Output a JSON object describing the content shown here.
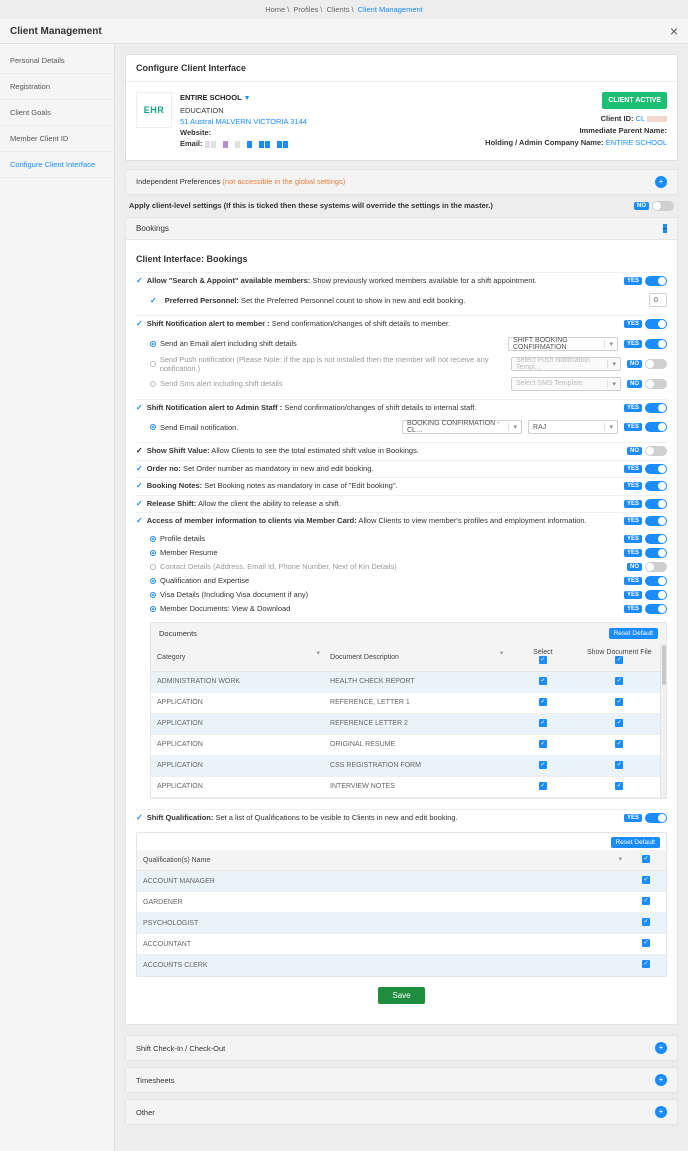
{
  "breadcrumb": {
    "home": "Home",
    "profiles": "Profiles",
    "clients": "Clients",
    "current": "Client Management"
  },
  "page_title": "Client Management",
  "sidebar": {
    "items": [
      {
        "label": "Personal Details"
      },
      {
        "label": "Registration"
      },
      {
        "label": "Client Goals"
      },
      {
        "label": "Member Client ID"
      },
      {
        "label": "Configure Client Interface"
      }
    ],
    "active_index": 4
  },
  "card": {
    "title": "Configure Client Interface",
    "logo_text": "EHR",
    "client_name": "ENTIRE SCHOOL",
    "category": "EDUCATION",
    "address": "51 Austral MALVERN VICTORIA 3144",
    "website_label": "Website:",
    "email_label": "Email:",
    "status_badge": "CLIENT ACTIVE",
    "client_id_label": "Client ID:",
    "client_id_value": "CL",
    "parent_label": "Immediate Parent Name:",
    "holding_label": "Holding / Admin Company Name:",
    "holding_value": "ENTIRE SCHOOL",
    "barcode_colors": [
      "#e0e0e0",
      "#e0e0e0",
      "#ffffff",
      "#b68fd1",
      "#ffffff",
      "#e0e0e0",
      "#ffffff",
      "#1a8cff",
      "#ffffff",
      "#1a8cff",
      "#1a8cff",
      "#ffffff",
      "#1a8cff",
      "#1a8cff"
    ]
  },
  "bars": {
    "indep_label": "Independent Preferences",
    "indep_note": "(not accessible in the global settings)",
    "apply_hint": "Apply client-level settings (If this is ticked then these systems will override the settings in the master.)",
    "bookings": "Bookings",
    "shift_check": "Shift Check-In / Check-Out",
    "timesheets": "Timesheets",
    "other": "Other"
  },
  "section_title": "Client Interface: Bookings",
  "toggle_labels": {
    "yes": "YES",
    "no": "NO"
  },
  "settings": {
    "search_appoint": {
      "b": "Allow \"Search & Appoint\" available members:",
      "t": " Show previously worked members available for a shift appointment."
    },
    "preferred": {
      "b": "Preferred Personnel:",
      "t": " Set the Preferred Personnel count to show in new and edit booking.",
      "val": "0"
    },
    "notif_member": {
      "b": "Shift Notification alert to member :",
      "t": " Send confirmation/changes of shift details to member."
    },
    "notif_member_opts": {
      "email": "Send an Email alert including shift details",
      "push": "Send Push notification (Please Note: if the app is not installed then the member will not receive any notification.)",
      "sms": "Send Sms alert including shift details",
      "email_tpl": "SHIFT BOOKING CONFIRMATION",
      "push_tpl": "Select Push Notification Templ…",
      "sms_tpl": "Select SMS Template"
    },
    "notif_admin": {
      "b": "Shift Notification alert to Admin Staff :",
      "t": " Send confirmation/changes of shift details to internal staff."
    },
    "notif_admin_opts": {
      "email": "Send Email notification.",
      "tpl": "BOOKING CONFIRMATION - CL…",
      "who": "RAJ"
    },
    "show_value": {
      "b": "Show Shift Value:",
      "t": " Allow Clients to see the total estimated shift value in Bookings."
    },
    "order_no": {
      "b": "Order no:",
      "t": " Set Order number as mandatory in new and edit booking."
    },
    "booking_notes": {
      "b": "Booking Notes:",
      "t": " Set Booking notes as mandatory in case of \"Edit booking\"."
    },
    "release": {
      "b": "Release Shift:",
      "t": " Allow the client the ability to release a shift."
    },
    "member_card": {
      "b": "Access of member information to clients via Member Card:",
      "t": " Allow Clients to view member's profiles and employment information."
    },
    "member_card_opts": {
      "profile": "Profile details",
      "resume": "Member Resume",
      "contact": "Contact Details (Address, Email Id, Phone Number, Next of Kin Details)",
      "qual": "Qualification and Expertise",
      "visa": "Visa Details (Including Visa document if any)",
      "docs": "Member Documents: View & Download"
    },
    "shift_qual": {
      "b": "Shift Qualification:",
      "t": " Set a list of Qualifications to be visible to Clients in new and edit booking."
    }
  },
  "documents": {
    "title": "Documents",
    "reset": "Reset Default",
    "cols": {
      "cat": "Category",
      "desc": "Document Description",
      "select": "Select",
      "show": "Show Document File"
    },
    "rows": [
      {
        "cat": "ADMINISTRATION WORK",
        "desc": "HEALTH CHECK REPORT"
      },
      {
        "cat": "APPLICATION",
        "desc": "REFERENCE, LETTER 1"
      },
      {
        "cat": "APPLICATION",
        "desc": "REFERENCE LETTER 2"
      },
      {
        "cat": "APPLICATION",
        "desc": "ORIGINAL RESUME"
      },
      {
        "cat": "APPLICATION",
        "desc": "CSS REGISTRATION FORM"
      },
      {
        "cat": "APPLICATION",
        "desc": "INTERVIEW NOTES"
      }
    ]
  },
  "qualifications": {
    "reset": "Reset Default",
    "col": "Qualification(s) Name",
    "rows": [
      "ACCOUNT MANAGER",
      "GARDENER",
      "PSYCHOLOGIST",
      "ACCOUNTANT",
      "ACCOUNTS CLERK"
    ]
  },
  "save_label": "Save"
}
